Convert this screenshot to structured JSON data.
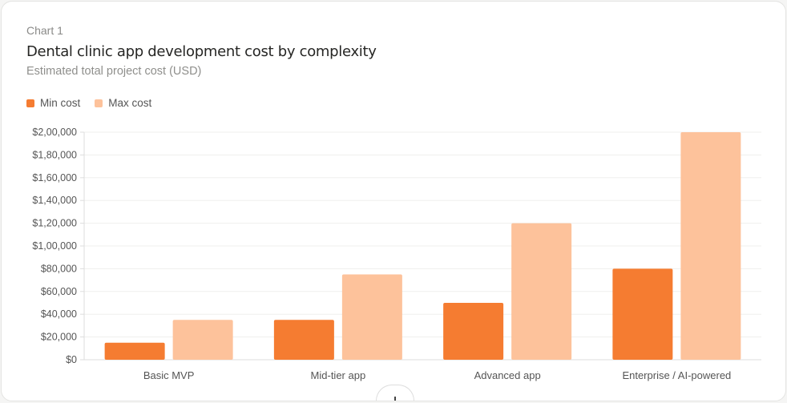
{
  "header": {
    "eyebrow": "Chart 1",
    "title": "Dental clinic app development cost by complexity",
    "subtitle": "Estimated total project cost (USD)"
  },
  "colors": {
    "min": "#f57c31",
    "max": "#fdc29b"
  },
  "chart_data": {
    "type": "bar",
    "title": "Dental clinic app development cost by complexity",
    "subtitle": "Estimated total project cost (USD)",
    "categories": [
      "Basic MVP",
      "Mid-tier app",
      "Advanced app",
      "Enterprise / AI-powered"
    ],
    "series": [
      {
        "name": "Min cost",
        "values": [
          15000,
          35000,
          50000,
          80000
        ]
      },
      {
        "name": "Max cost",
        "values": [
          35000,
          75000,
          120000,
          200000
        ]
      }
    ],
    "ylim": [
      0,
      200000
    ],
    "yticks": [
      0,
      20000,
      40000,
      60000,
      80000,
      100000,
      120000,
      140000,
      160000,
      180000,
      200000
    ],
    "ytick_labels": [
      "$0",
      "$20,000",
      "$40,000",
      "$60,000",
      "$80,000",
      "$1,00,000",
      "$1,20,000",
      "$1,40,000",
      "$1,60,000",
      "$1,80,000",
      "$2,00,000"
    ],
    "grid": true,
    "legend": "top-left"
  }
}
